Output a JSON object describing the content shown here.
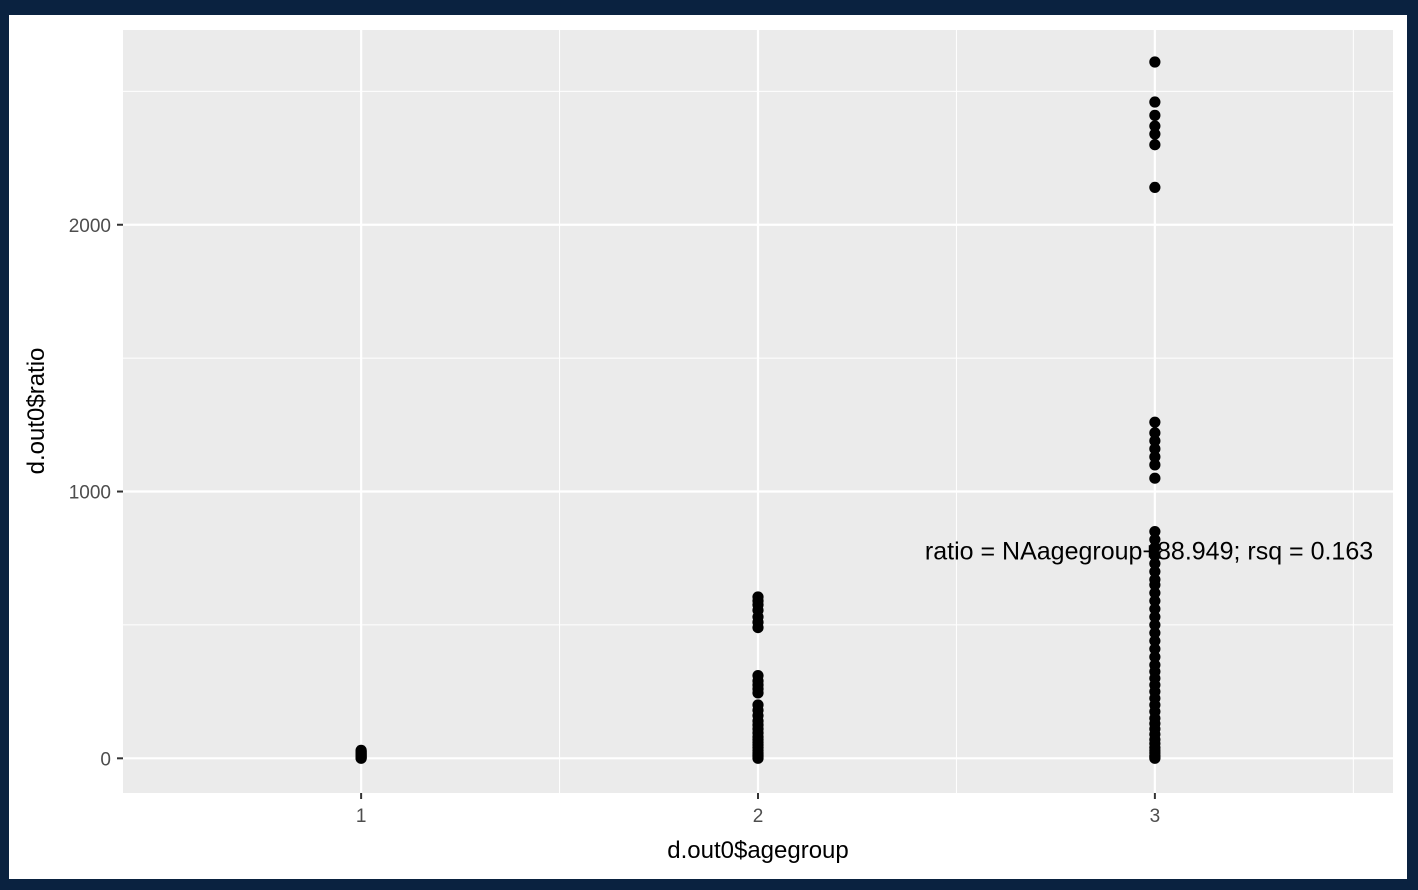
{
  "chart_data": {
    "type": "scatter",
    "xlabel": "d.out0$agegroup",
    "ylabel": "d.out0$ratio",
    "xlim": [
      0.4,
      3.6
    ],
    "ylim": [
      -130,
      2730
    ],
    "x_ticks": [
      1,
      2,
      3
    ],
    "y_ticks": [
      0,
      1000,
      2000
    ],
    "y_minor_ticks": [
      500,
      1500,
      2500
    ],
    "x_minor_ticks": [
      1.5,
      2.5,
      3.5
    ],
    "grid": true,
    "annotation": {
      "text": "ratio = NAagegroup+88.949; rsq = 0.163",
      "x": 3.55,
      "y": 745
    },
    "series": [
      {
        "x": 1,
        "values": [
          0,
          2,
          5,
          8,
          12,
          15,
          18,
          22,
          26,
          30
        ]
      },
      {
        "x": 2,
        "values": [
          0,
          5,
          10,
          15,
          20,
          30,
          40,
          50,
          60,
          70,
          80,
          95,
          110,
          125,
          140,
          160,
          180,
          200,
          245,
          260,
          275,
          290,
          310,
          490,
          510,
          530,
          555,
          575,
          590,
          605
        ]
      },
      {
        "x": 3,
        "values": [
          0,
          5,
          10,
          20,
          30,
          40,
          55,
          70,
          90,
          110,
          130,
          150,
          175,
          200,
          225,
          250,
          275,
          300,
          325,
          350,
          380,
          410,
          440,
          470,
          500,
          530,
          560,
          590,
          620,
          650,
          670,
          700,
          730,
          760,
          790,
          820,
          850,
          1050,
          1100,
          1130,
          1160,
          1190,
          1220,
          1260,
          2140,
          2300,
          2340,
          2370,
          2410,
          2460,
          2610
        ]
      }
    ]
  }
}
